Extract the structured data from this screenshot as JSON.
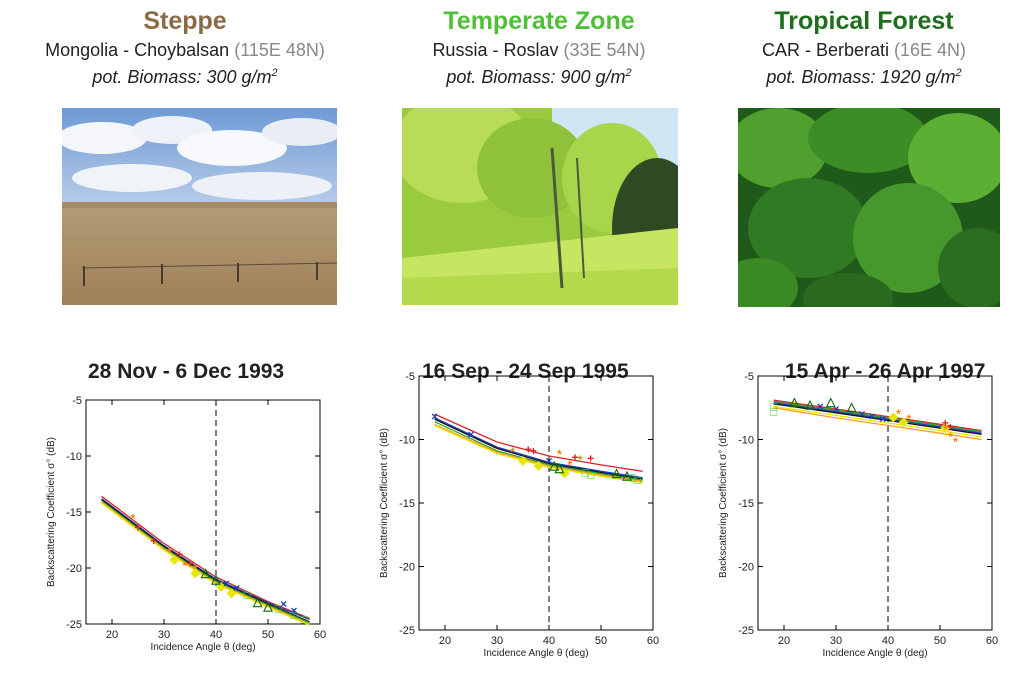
{
  "zones": [
    {
      "name": "Steppe",
      "color": "#8B6A46",
      "location": "Mongolia - Choybalsan",
      "coords": "(115E 48N)",
      "biomass_prefix": "pot. Biomass: 300 g/m",
      "biomass_sup": "2",
      "photo": "steppe-photo"
    },
    {
      "name": "Temperate Zone",
      "color": "#4FBF3A",
      "location": "Russia - Roslav",
      "coords": "(33E 54N)",
      "biomass_prefix": "pot. Biomass: 900 g/m",
      "biomass_sup": "2",
      "photo": "temperate-forest-photo"
    },
    {
      "name": "Tropical Forest",
      "color": "#1E6E1E",
      "location": "CAR - Berberati",
      "coords": "(16E 4N)",
      "biomass_prefix": "pot. Biomass: 1920 g/m",
      "biomass_sup": "2",
      "photo": "tropical-forest-photo"
    }
  ],
  "chart_data": [
    {
      "type": "scatter",
      "title": "28 Nov - 6 Dec 1993",
      "xlabel": "Incidence Angle θ (deg)",
      "ylabel": "Backscattering Coefficient σ° (dB)",
      "xlim": [
        15,
        60
      ],
      "ylim": [
        -25,
        -5
      ],
      "xticks": [
        20,
        30,
        40,
        50,
        60
      ],
      "yticks": [
        -25,
        -20,
        -15,
        -10,
        -5
      ],
      "vline": 40,
      "lines": [
        {
          "color": "#d62728",
          "points": [
            [
              18,
              -13.6
            ],
            [
              30,
              -17.8
            ],
            [
              40,
              -20.8
            ],
            [
              50,
              -23.0
            ],
            [
              58,
              -24.5
            ]
          ]
        },
        {
          "color": "#1f3fbf",
          "points": [
            [
              18,
              -13.8
            ],
            [
              30,
              -18.0
            ],
            [
              40,
              -21.0
            ],
            [
              50,
              -23.1
            ],
            [
              58,
              -24.6
            ]
          ]
        },
        {
          "color": "#111111",
          "points": [
            [
              18,
              -13.9
            ],
            [
              30,
              -18.1
            ],
            [
              40,
              -21.1
            ],
            [
              50,
              -23.2
            ],
            [
              58,
              -24.8
            ]
          ]
        },
        {
          "color": "#2ca02c",
          "points": [
            [
              18,
              -14.0
            ],
            [
              30,
              -18.2
            ],
            [
              40,
              -21.2
            ],
            [
              50,
              -23.3
            ],
            [
              58,
              -24.9
            ]
          ]
        },
        {
          "color": "#ff9f1c",
          "points": [
            [
              18,
              -14.1
            ],
            [
              30,
              -18.3
            ],
            [
              40,
              -21.3
            ],
            [
              50,
              -23.4
            ],
            [
              58,
              -25.0
            ]
          ]
        },
        {
          "color": "#e6e600",
          "points": [
            [
              18,
              -14.2
            ],
            [
              30,
              -18.4
            ],
            [
              40,
              -21.4
            ],
            [
              50,
              -23.5
            ],
            [
              58,
              -25.1
            ]
          ]
        }
      ],
      "points": [
        {
          "m": "+",
          "c": "#d62728",
          "x": 25,
          "y": -16.4
        },
        {
          "m": "+",
          "c": "#d62728",
          "x": 28,
          "y": -17.6
        },
        {
          "m": "+",
          "c": "#d62728",
          "x": 33,
          "y": -18.8
        },
        {
          "m": "+",
          "c": "#d62728",
          "x": 35,
          "y": -19.6
        },
        {
          "m": "*",
          "c": "#ff7f0e",
          "x": 24,
          "y": -15.6
        },
        {
          "m": "*",
          "c": "#ff7f0e",
          "x": 31,
          "y": -18.6
        },
        {
          "m": "*",
          "c": "#ff7f0e",
          "x": 34,
          "y": -19.8
        },
        {
          "m": "*",
          "c": "#ff7f0e",
          "x": 36,
          "y": -20.1
        },
        {
          "m": "◆",
          "c": "#e6e600",
          "x": 32,
          "y": -19.2
        },
        {
          "m": "◆",
          "c": "#e6e600",
          "x": 36,
          "y": -20.4
        },
        {
          "m": "◆",
          "c": "#e6e600",
          "x": 41,
          "y": -21.6
        },
        {
          "m": "◆",
          "c": "#e6e600",
          "x": 43,
          "y": -22.2
        },
        {
          "m": "△",
          "c": "#0b6b0b",
          "x": 38,
          "y": -20.4
        },
        {
          "m": "△",
          "c": "#0b6b0b",
          "x": 40,
          "y": -21.0
        },
        {
          "m": "△",
          "c": "#0b6b0b",
          "x": 48,
          "y": -23.0
        },
        {
          "m": "△",
          "c": "#0b6b0b",
          "x": 50,
          "y": -23.4
        },
        {
          "m": "×",
          "c": "#1f3fbf",
          "x": 42,
          "y": -21.4
        },
        {
          "m": "×",
          "c": "#1f3fbf",
          "x": 44,
          "y": -21.8
        },
        {
          "m": "×",
          "c": "#1f3fbf",
          "x": 53,
          "y": -23.2
        },
        {
          "m": "×",
          "c": "#1f3fbf",
          "x": 55,
          "y": -23.8
        },
        {
          "m": "□",
          "c": "#3cd63c",
          "x": 46,
          "y": -22.4
        },
        {
          "m": "□",
          "c": "#3cd63c",
          "x": 52,
          "y": -23.6
        },
        {
          "m": "□",
          "c": "#3cd63c",
          "x": 55,
          "y": -24.2
        },
        {
          "m": "□",
          "c": "#3cd63c",
          "x": 57,
          "y": -24.6
        }
      ]
    },
    {
      "type": "scatter",
      "title": "16 Sep - 24 Sep 1995",
      "xlabel": "Incidence Angle θ (deg)",
      "ylabel": "Backscattering Coefficient σ° (dB)",
      "xlim": [
        15,
        60
      ],
      "ylim": [
        -25,
        -5
      ],
      "xticks": [
        20,
        30,
        40,
        50,
        60
      ],
      "yticks": [
        -25,
        -20,
        -15,
        -10,
        -5
      ],
      "vline": 40,
      "lines": [
        {
          "color": "#d62728",
          "points": [
            [
              18,
              -8.0
            ],
            [
              30,
              -10.2
            ],
            [
              40,
              -11.3
            ],
            [
              50,
              -12.0
            ],
            [
              58,
              -12.5
            ]
          ]
        },
        {
          "color": "#1f3fbf",
          "points": [
            [
              18,
              -8.3
            ],
            [
              30,
              -10.6
            ],
            [
              40,
              -11.8
            ],
            [
              50,
              -12.5
            ],
            [
              58,
              -13.0
            ]
          ]
        },
        {
          "color": "#111111",
          "points": [
            [
              18,
              -8.4
            ],
            [
              30,
              -10.7
            ],
            [
              40,
              -11.9
            ],
            [
              50,
              -12.6
            ],
            [
              58,
              -13.1
            ]
          ]
        },
        {
          "color": "#2ca02c",
          "points": [
            [
              18,
              -8.6
            ],
            [
              30,
              -10.9
            ],
            [
              40,
              -12.0
            ],
            [
              50,
              -12.7
            ],
            [
              58,
              -13.2
            ]
          ]
        },
        {
          "color": "#ff9f1c",
          "points": [
            [
              18,
              -8.8
            ],
            [
              30,
              -11.0
            ],
            [
              40,
              -12.1
            ],
            [
              50,
              -12.8
            ],
            [
              58,
              -13.3
            ]
          ]
        },
        {
          "color": "#e6e600",
          "points": [
            [
              18,
              -8.9
            ],
            [
              30,
              -11.1
            ],
            [
              40,
              -12.2
            ],
            [
              50,
              -12.9
            ],
            [
              58,
              -13.4
            ]
          ]
        }
      ],
      "points": [
        {
          "m": "×",
          "c": "#1f3fbf",
          "x": 18,
          "y": -8.2
        },
        {
          "m": "×",
          "c": "#1f3fbf",
          "x": 25,
          "y": -9.6
        },
        {
          "m": "×",
          "c": "#1f3fbf",
          "x": 40,
          "y": -11.7
        },
        {
          "m": "+",
          "c": "#d62728",
          "x": 36,
          "y": -10.8
        },
        {
          "m": "+",
          "c": "#d62728",
          "x": 37,
          "y": -10.9
        },
        {
          "m": "+",
          "c": "#d62728",
          "x": 45,
          "y": -11.4
        },
        {
          "m": "+",
          "c": "#d62728",
          "x": 48,
          "y": -11.5
        },
        {
          "m": "*",
          "c": "#ff7f0e",
          "x": 33,
          "y": -11.0
        },
        {
          "m": "*",
          "c": "#ff7f0e",
          "x": 42,
          "y": -11.2
        },
        {
          "m": "*",
          "c": "#ff7f0e",
          "x": 44,
          "y": -12.0
        },
        {
          "m": "*",
          "c": "#ff7f0e",
          "x": 46,
          "y": -11.6
        },
        {
          "m": "◆",
          "c": "#e6e600",
          "x": 35,
          "y": -11.6
        },
        {
          "m": "◆",
          "c": "#e6e600",
          "x": 38,
          "y": -12.0
        },
        {
          "m": "◆",
          "c": "#e6e600",
          "x": 43,
          "y": -12.6
        },
        {
          "m": "△",
          "c": "#0b6b0b",
          "x": 41,
          "y": -12.0
        },
        {
          "m": "△",
          "c": "#0b6b0b",
          "x": 42,
          "y": -12.2
        },
        {
          "m": "△",
          "c": "#0b6b0b",
          "x": 53,
          "y": -12.6
        },
        {
          "m": "△",
          "c": "#0b6b0b",
          "x": 55,
          "y": -12.8
        },
        {
          "m": "□",
          "c": "#3cd63c",
          "x": 47,
          "y": -12.6
        },
        {
          "m": "□",
          "c": "#3cd63c",
          "x": 48,
          "y": -12.8
        },
        {
          "m": "□",
          "c": "#3cd63c",
          "x": 56,
          "y": -13.0
        },
        {
          "m": "□",
          "c": "#3cd63c",
          "x": 57,
          "y": -13.2
        }
      ]
    },
    {
      "type": "scatter",
      "title": "15 Apr - 26 Apr 1997",
      "xlabel": "Incidence Angle θ (deg)",
      "ylabel": "Backscattering Coefficient σ° (dB)",
      "xlim": [
        15,
        60
      ],
      "ylim": [
        -25,
        -5
      ],
      "xticks": [
        20,
        30,
        40,
        50,
        60
      ],
      "yticks": [
        -25,
        -20,
        -15,
        -10,
        -5
      ],
      "vline": 40,
      "lines": [
        {
          "color": "#d62728",
          "points": [
            [
              18,
              -6.9
            ],
            [
              30,
              -7.6
            ],
            [
              40,
              -8.2
            ],
            [
              50,
              -8.8
            ],
            [
              58,
              -9.3
            ]
          ]
        },
        {
          "color": "#1f3fbf",
          "points": [
            [
              18,
              -7.1
            ],
            [
              30,
              -7.8
            ],
            [
              40,
              -8.4
            ],
            [
              50,
              -9.0
            ],
            [
              58,
              -9.5
            ]
          ]
        },
        {
          "color": "#111111",
          "points": [
            [
              18,
              -7.2
            ],
            [
              30,
              -7.9
            ],
            [
              40,
              -8.5
            ],
            [
              50,
              -9.1
            ],
            [
              58,
              -9.6
            ]
          ]
        },
        {
          "color": "#2ca02c",
          "points": [
            [
              18,
              -7.0
            ],
            [
              30,
              -7.7
            ],
            [
              40,
              -8.3
            ],
            [
              50,
              -8.9
            ],
            [
              58,
              -9.4
            ]
          ]
        },
        {
          "color": "#ff9f1c",
          "points": [
            [
              18,
              -7.5
            ],
            [
              30,
              -8.3
            ],
            [
              40,
              -8.9
            ],
            [
              50,
              -9.5
            ],
            [
              58,
              -10.0
            ]
          ]
        },
        {
          "color": "#e6e600",
          "points": [
            [
              18,
              -7.4
            ],
            [
              30,
              -8.1
            ],
            [
              40,
              -8.7
            ],
            [
              50,
              -9.3
            ],
            [
              58,
              -9.8
            ]
          ]
        }
      ],
      "points": [
        {
          "m": "□",
          "c": "#3cd63c",
          "x": 18,
          "y": -7.8
        },
        {
          "m": "□",
          "c": "#3cd63c",
          "x": 18,
          "y": -7.4
        },
        {
          "m": "△",
          "c": "#0b6b0b",
          "x": 22,
          "y": -7.0
        },
        {
          "m": "△",
          "c": "#0b6b0b",
          "x": 25,
          "y": -7.2
        },
        {
          "m": "△",
          "c": "#0b6b0b",
          "x": 29,
          "y": -7.0
        },
        {
          "m": "△",
          "c": "#0b6b0b",
          "x": 33,
          "y": -7.4
        },
        {
          "m": "×",
          "c": "#1f3fbf",
          "x": 27,
          "y": -7.4
        },
        {
          "m": "×",
          "c": "#1f3fbf",
          "x": 30,
          "y": -7.6
        },
        {
          "m": "×",
          "c": "#1f3fbf",
          "x": 35,
          "y": -8.0
        },
        {
          "m": "×",
          "c": "#1f3fbf",
          "x": 37,
          "y": -8.2
        },
        {
          "m": "×",
          "c": "#1f3fbf",
          "x": 39,
          "y": -8.4
        },
        {
          "m": "◆",
          "c": "#e6e600",
          "x": 41,
          "y": -8.2
        },
        {
          "m": "◆",
          "c": "#e6e600",
          "x": 43,
          "y": -8.6
        },
        {
          "m": "◆",
          "c": "#e6e600",
          "x": 51,
          "y": -9.0
        },
        {
          "m": "*",
          "c": "#ff7f0e",
          "x": 42,
          "y": -8.0
        },
        {
          "m": "*",
          "c": "#ff7f0e",
          "x": 44,
          "y": -8.4
        },
        {
          "m": "*",
          "c": "#ff7f0e",
          "x": 51,
          "y": -9.2
        },
        {
          "m": "*",
          "c": "#ff7f0e",
          "x": 52,
          "y": -9.8
        },
        {
          "m": "*",
          "c": "#ff7f0e",
          "x": 53,
          "y": -10.2
        },
        {
          "m": "+",
          "c": "#d62728",
          "x": 51,
          "y": -8.7
        },
        {
          "m": "+",
          "c": "#d62728",
          "x": 52,
          "y": -9.0
        }
      ]
    }
  ]
}
